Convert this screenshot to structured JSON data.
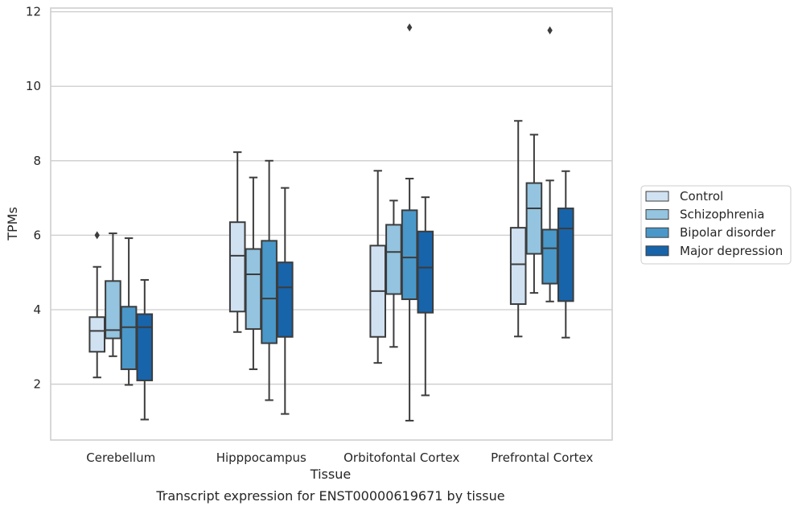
{
  "chart_data": {
    "type": "box",
    "caption": "Transcript expression for ENST00000619671 by tissue",
    "xlabel": "Tissue",
    "ylabel": "TPMs",
    "ylim": [
      0.5,
      12.1
    ],
    "yticks": [
      2,
      4,
      6,
      8,
      10,
      12
    ],
    "grid": "horizontal",
    "legend_position": "right",
    "categories": [
      "Cerebellum",
      "Hipppocampus",
      "Orbitofontal Cortex",
      "Prefrontal Cortex"
    ],
    "series": [
      {
        "name": "Control",
        "color": "#d0e1f2",
        "boxes": [
          {
            "whislo": 2.18,
            "q1": 2.87,
            "med": 3.43,
            "q3": 3.8,
            "whishi": 5.15,
            "fliers": [
              6.0
            ]
          },
          {
            "whislo": 3.4,
            "q1": 3.95,
            "med": 5.45,
            "q3": 6.35,
            "whishi": 8.23,
            "fliers": []
          },
          {
            "whislo": 2.57,
            "q1": 3.27,
            "med": 4.5,
            "q3": 5.72,
            "whishi": 7.73,
            "fliers": []
          },
          {
            "whislo": 3.28,
            "q1": 4.15,
            "med": 5.22,
            "q3": 6.2,
            "whishi": 9.07,
            "fliers": []
          }
        ]
      },
      {
        "name": "Schizophrenia",
        "color": "#94c4df",
        "boxes": [
          {
            "whislo": 2.75,
            "q1": 3.23,
            "med": 3.45,
            "q3": 4.77,
            "whishi": 6.05,
            "fliers": []
          },
          {
            "whislo": 2.4,
            "q1": 3.48,
            "med": 4.95,
            "q3": 5.63,
            "whishi": 7.55,
            "fliers": []
          },
          {
            "whislo": 3.0,
            "q1": 4.42,
            "med": 5.55,
            "q3": 6.28,
            "whishi": 6.93,
            "fliers": []
          },
          {
            "whislo": 4.45,
            "q1": 5.5,
            "med": 6.72,
            "q3": 7.4,
            "whishi": 8.7,
            "fliers": []
          }
        ]
      },
      {
        "name": "Bipolar disorder",
        "color": "#4a98c9",
        "boxes": [
          {
            "whislo": 1.98,
            "q1": 2.4,
            "med": 3.53,
            "q3": 4.08,
            "whishi": 5.92,
            "fliers": []
          },
          {
            "whislo": 1.57,
            "q1": 3.1,
            "med": 4.3,
            "q3": 5.85,
            "whishi": 8.0,
            "fliers": []
          },
          {
            "whislo": 1.02,
            "q1": 4.28,
            "med": 5.4,
            "q3": 6.67,
            "whishi": 7.52,
            "fliers": [
              11.58
            ]
          },
          {
            "whislo": 4.22,
            "q1": 4.7,
            "med": 5.65,
            "q3": 6.15,
            "whishi": 7.47,
            "fliers": [
              11.5
            ]
          }
        ]
      },
      {
        "name": "Major depression",
        "color": "#1764ab",
        "boxes": [
          {
            "whislo": 1.05,
            "q1": 2.1,
            "med": 3.53,
            "q3": 3.88,
            "whishi": 4.8,
            "fliers": []
          },
          {
            "whislo": 1.2,
            "q1": 3.27,
            "med": 4.6,
            "q3": 5.27,
            "whishi": 7.27,
            "fliers": []
          },
          {
            "whislo": 1.7,
            "q1": 3.92,
            "med": 5.13,
            "q3": 6.1,
            "whishi": 7.02,
            "fliers": []
          },
          {
            "whislo": 3.25,
            "q1": 4.23,
            "med": 6.18,
            "q3": 6.72,
            "whishi": 7.72,
            "fliers": []
          }
        ]
      }
    ]
  }
}
